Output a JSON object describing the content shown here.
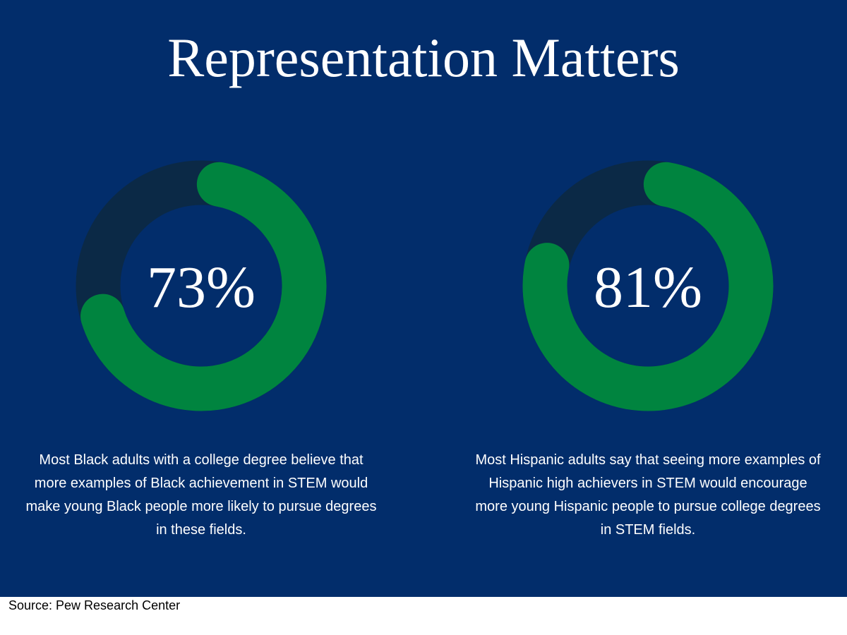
{
  "title": "Representation Matters",
  "chart_data": [
    {
      "type": "donut",
      "values": [
        73
      ],
      "value_labels": [
        "73%"
      ],
      "color": "#00843f",
      "track_color": "#0b2946",
      "description": "Most Black adults with a college degree believe that more examples of Black achievement in STEM would make young Black people more likely to pursue degrees in these fields."
    },
    {
      "type": "donut",
      "values": [
        81
      ],
      "value_labels": [
        "81%"
      ],
      "color": "#00843f",
      "track_color": "#0b2946",
      "description": "Most Hispanic adults say that seeing more examples of Hispanic high achievers in STEM would encourage more young Hispanic people to pursue college degrees in STEM fields."
    }
  ],
  "source": "Source: Pew Research Center"
}
